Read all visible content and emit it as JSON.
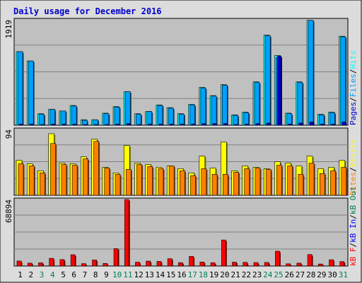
{
  "colors": {
    "background": "#ffffff",
    "frame_bg": "#dcdcdc",
    "plot_bg": "#c0c0c0",
    "gridline": "#808080",
    "title": "#0000cc",
    "hits": "#00ffff",
    "files": "#00a0ff",
    "pages": "#0000cc",
    "visits": "#ffff00",
    "sites": "#ff8000",
    "kb_in": "#ff0000",
    "kb_out": "#0000ff",
    "weekend_day_label": "#00804f",
    "weekday_label": "#000000"
  },
  "chart_data": {
    "type": "bar",
    "title": "Daily usage for December 2016",
    "categories": [
      "1",
      "2",
      "3",
      "4",
      "5",
      "6",
      "7",
      "8",
      "9",
      "10",
      "11",
      "12",
      "13",
      "14",
      "15",
      "16",
      "17",
      "18",
      "19",
      "20",
      "21",
      "22",
      "23",
      "24",
      "25",
      "26",
      "27",
      "28",
      "29",
      "30",
      "31"
    ],
    "weekend_days": [
      "3",
      "4",
      "10",
      "11",
      "17",
      "18",
      "24",
      "25",
      "31"
    ],
    "panels": [
      {
        "name": "requests",
        "max_label": "1919",
        "ylim": [
          0,
          1919
        ],
        "legend": [
          {
            "label": "Pages",
            "color": "#0000cc"
          },
          {
            "label": "Files",
            "color": "#00a0ff"
          },
          {
            "label": "Hits",
            "color": "#00ffff"
          }
        ],
        "separator": "/",
        "series": [
          {
            "name": "Hits",
            "values": [
              1340,
              1170,
              210,
              290,
              260,
              360,
              100,
              100,
              220,
              340,
              610,
              210,
              250,
              370,
              320,
              210,
              380,
              690,
              540,
              740,
              190,
              240,
              790,
              1640,
              1270,
              220,
              790,
              1910,
              200,
              240,
              1620
            ]
          },
          {
            "name": "Files",
            "values": [
              1340,
              1170,
              200,
              290,
              260,
              350,
              90,
              100,
              210,
              330,
              610,
              200,
              250,
              360,
              310,
              200,
              370,
              680,
              530,
              730,
              180,
              230,
              780,
              1630,
              1230,
              210,
              780,
              1910,
              190,
              230,
              1610
            ]
          },
          {
            "name": "Pages",
            "values": [
              20,
              20,
              10,
              20,
              20,
              20,
              10,
              10,
              10,
              20,
              30,
              10,
              20,
              20,
              20,
              20,
              20,
              30,
              30,
              30,
              10,
              20,
              30,
              40,
              1260,
              20,
              40,
              60,
              20,
              20,
              60
            ]
          }
        ]
      },
      {
        "name": "visitors",
        "max_label": "94",
        "ylim": [
          0,
          94
        ],
        "legend": [
          {
            "label": "Sites",
            "color": "#ff8000"
          },
          {
            "label": "Visits",
            "color": "#ffff00"
          }
        ],
        "separator": "/",
        "series": [
          {
            "name": "Visits",
            "values": [
              50,
              45,
              35,
              88,
              46,
              45,
              55,
              80,
              40,
              32,
              71,
              46,
              44,
              40,
              42,
              38,
              32,
              56,
              39,
              76,
              35,
              42,
              40,
              38,
              48,
              46,
              42,
              56,
              38,
              40,
              50
            ]
          },
          {
            "name": "Sites",
            "values": [
              45,
              42,
              32,
              74,
              44,
              43,
              52,
              77,
              39,
              30,
              37,
              44,
              41,
              38,
              42,
              35,
              28,
              38,
              30,
              30,
              33,
              38,
              39,
              37,
              43,
              42,
              30,
              46,
              31,
              35,
              40
            ]
          }
        ]
      },
      {
        "name": "kbytes",
        "max_label": "68894",
        "ylim": [
          0,
          68894
        ],
        "legend": [
          {
            "label": "kB F",
            "color": "#ff0000"
          },
          {
            "label": "kB In",
            "color": "#0000ff"
          },
          {
            "label": "kB Out",
            "color": "#00804f"
          }
        ],
        "separator": "/",
        "series": [
          {
            "name": "kB F",
            "values": [
              5200,
              3000,
              3400,
              8000,
              6700,
              11700,
              2500,
              6300,
              2700,
              18000,
              68894,
              4000,
              5100,
              4800,
              7600,
              3500,
              10000,
              4100,
              3400,
              27000,
              4000,
              3800,
              3600,
              3700,
              15400,
              2300,
              3000,
              11900,
              2100,
              6500,
              4600
            ]
          }
        ]
      }
    ]
  }
}
